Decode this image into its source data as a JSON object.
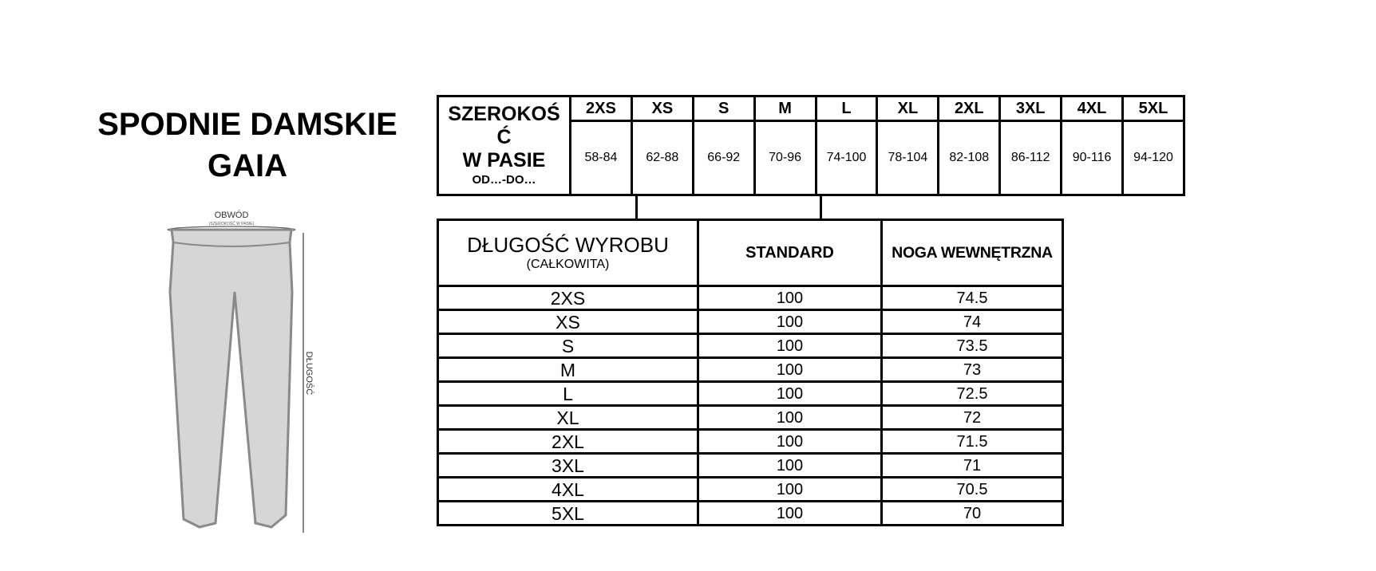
{
  "title": {
    "line1": "SPODNIE DAMSKIE",
    "line2": "GAIA"
  },
  "illustration": {
    "top_label": "OBWÓD",
    "top_sublabel": "(SZEROKOŚĆ W PASIE)",
    "side_label": "DŁUGOŚĆ",
    "fill_color": "#d6d6d6",
    "stroke_color": "#8a8a8a"
  },
  "waist_table": {
    "label_lines": [
      "SZEROKOŚ",
      "Ć",
      "W PASIE"
    ],
    "label_small": "OD…-DO…",
    "sizes": [
      "2XS",
      "XS",
      "S",
      "M",
      "L",
      "XL",
      "2XL",
      "3XL",
      "4XL",
      "5XL"
    ],
    "ranges": [
      "58-84",
      "62-88",
      "66-92",
      "70-96",
      "74-100",
      "78-104",
      "82-108",
      "86-112",
      "90-116",
      "94-120"
    ]
  },
  "length_table": {
    "header": {
      "label": "DŁUGOŚĆ WYROBU",
      "sublabel": "(CAŁKOWITA)",
      "col1": "STANDARD",
      "col2": "NOGA WEWNĘTRZNA"
    },
    "rows": [
      {
        "size": "2XS",
        "standard": "100",
        "inner": "74.5"
      },
      {
        "size": "XS",
        "standard": "100",
        "inner": "74"
      },
      {
        "size": "S",
        "standard": "100",
        "inner": "73.5"
      },
      {
        "size": "M",
        "standard": "100",
        "inner": "73"
      },
      {
        "size": "L",
        "standard": "100",
        "inner": "72.5"
      },
      {
        "size": "XL",
        "standard": "100",
        "inner": "72"
      },
      {
        "size": "2XL",
        "standard": "100",
        "inner": "71.5"
      },
      {
        "size": "3XL",
        "standard": "100",
        "inner": "71"
      },
      {
        "size": "4XL",
        "standard": "100",
        "inner": "70.5"
      },
      {
        "size": "5XL",
        "standard": "100",
        "inner": "70"
      }
    ]
  }
}
